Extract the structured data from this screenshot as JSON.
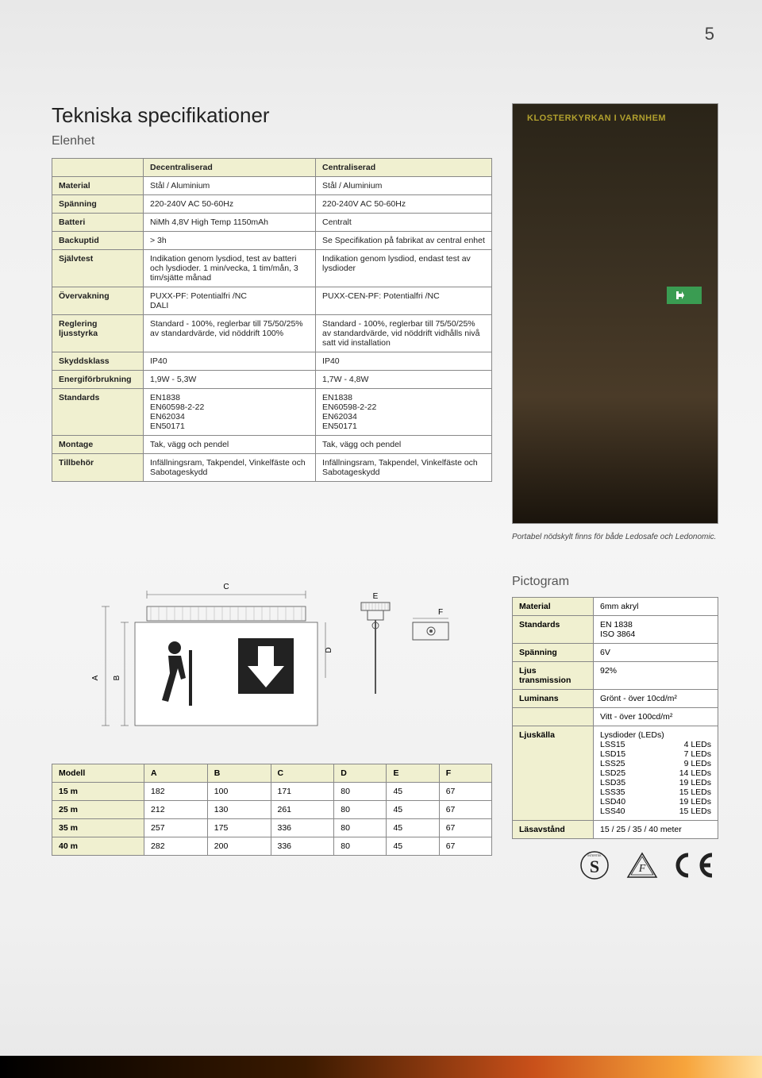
{
  "page_number": "5",
  "title": "Tekniska specifikationer",
  "subtitle": "Elenhet",
  "spec_table": {
    "header_blank": "",
    "col1": "Decentraliserad",
    "col2": "Centraliserad",
    "rows": [
      {
        "label": "Material",
        "a": "Stål / Aluminium",
        "b": "Stål / Aluminium"
      },
      {
        "label": "Spänning",
        "a": "220-240V AC   50-60Hz",
        "b": "220-240V AC   50-60Hz"
      },
      {
        "label": "Batteri",
        "a": "NiMh 4,8V High Temp 1150mAh",
        "b": "Centralt"
      },
      {
        "label": "Backuptid",
        "a": "> 3h",
        "b": "Se Specifikation på fabrikat av central enhet"
      },
      {
        "label": "Självtest",
        "a": "Indikation genom lysdiod, test av batteri och lysdioder. 1 min/vecka, 1 tim/mån, 3 tim/sjätte månad",
        "b": "Indikation genom lysdiod, endast test av lysdioder"
      },
      {
        "label": "Övervakning",
        "a": "PUXX-PF: Potentialfri /NC\nDALI",
        "b": "PUXX-CEN-PF: Potentialfri /NC"
      },
      {
        "label": "Reglering ljusstyrka",
        "a": "Standard - 100%, reglerbar till 75/50/25% av standardvärde, vid nöddrift 100%",
        "b": "Standard - 100%, reglerbar till 75/50/25% av standardvärde, vid nöddrift vidhålls nivå satt vid installation"
      },
      {
        "label": "Skyddsklass",
        "a": "IP40",
        "b": "IP40"
      },
      {
        "label": "Energiförbrukning",
        "a": "1,9W - 5,3W",
        "b": "1,7W - 4,8W"
      },
      {
        "label": "Standards",
        "a": "EN1838\nEN60598-2-22\nEN62034\nEN50171",
        "b": "EN1838\nEN60598-2-22\nEN62034\nEN50171"
      },
      {
        "label": "Montage",
        "a": "Tak, vägg och pendel",
        "b": "Tak, vägg och pendel"
      },
      {
        "label": "Tillbehör",
        "a": "Infällningsram, Takpendel, Vinkelfäste och Sabotageskydd",
        "b": "Infällningsram, Takpendel, Vinkelfäste och Sabotageskydd"
      }
    ]
  },
  "photo": {
    "overlay": "KLOSTERKYRKAN I VARNHEM",
    "caption": "Portabel nödskylt finns för både Ledosafe och Ledonomic."
  },
  "dims_table": {
    "headers": [
      "Modell",
      "A",
      "B",
      "C",
      "D",
      "E",
      "F"
    ],
    "rows": [
      [
        "15 m",
        "182",
        "100",
        "171",
        "80",
        "45",
        "67"
      ],
      [
        "25 m",
        "212",
        "130",
        "261",
        "80",
        "45",
        "67"
      ],
      [
        "35 m",
        "257",
        "175",
        "336",
        "80",
        "45",
        "67"
      ],
      [
        "40 m",
        "282",
        "200",
        "336",
        "80",
        "45",
        "67"
      ]
    ]
  },
  "diagram_labels": {
    "A": "A",
    "B": "B",
    "C": "C",
    "D": "D",
    "E": "E",
    "F": "F"
  },
  "picto": {
    "title": "Pictogram",
    "rows": [
      {
        "label": "Material",
        "val": "6mm akryl"
      },
      {
        "label": "Standards",
        "val": "EN 1838\nISO 3864"
      },
      {
        "label": "Spänning",
        "val": "6V"
      },
      {
        "label": "Ljus transmission",
        "val": "92%"
      },
      {
        "label": "Luminans",
        "val": "Grönt - över 10cd/m²"
      },
      {
        "label": "",
        "val": "Vitt - över 100cd/m²"
      }
    ],
    "ljuskalla_label": "Ljuskälla",
    "ljuskalla_intro": "Lysdioder (LEDs)",
    "ljuskalla_list": [
      [
        "LSS15",
        "4 LEDs"
      ],
      [
        "LSD15",
        "7 LEDs"
      ],
      [
        "LSS25",
        "9 LEDs"
      ],
      [
        "LSD25",
        "14 LEDs"
      ],
      [
        "LSD35",
        "19 LEDs"
      ],
      [
        "LSS35",
        "15 LEDs"
      ],
      [
        "LSD40",
        "19 LEDs"
      ],
      [
        "LSS40",
        "15 LEDs"
      ]
    ],
    "lasavstand": {
      "label": "Läsavstånd",
      "val": "15 / 25 / 35 / 40 meter"
    }
  },
  "colors": {
    "header_bg": "#f0f0d0",
    "border": "#888888",
    "cell_bg": "#ffffff"
  }
}
